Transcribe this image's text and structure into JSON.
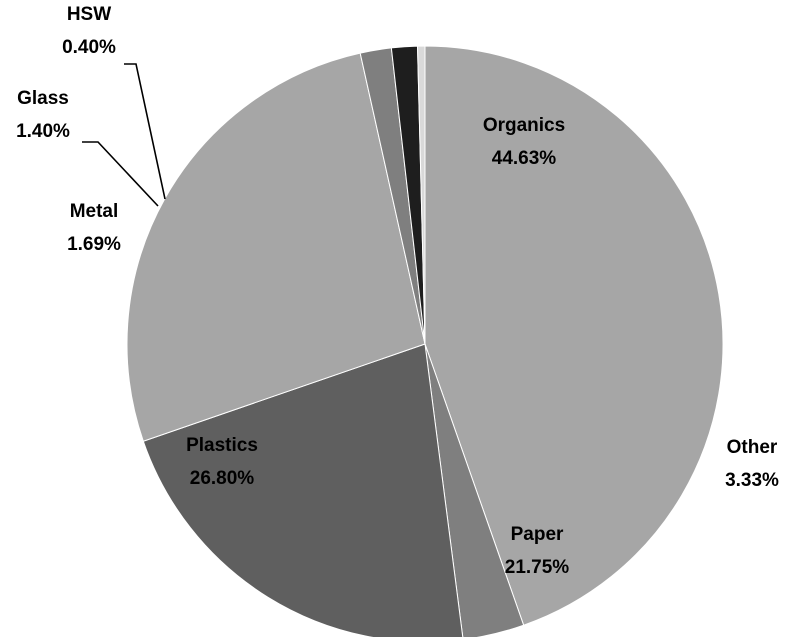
{
  "chart_data": {
    "type": "pie",
    "slices": [
      {
        "name": "Organics",
        "value": 44.63,
        "label": "44.63%",
        "color": "#a6a6a6"
      },
      {
        "name": "Other",
        "value": 3.33,
        "label": "3.33%",
        "color": "#7f7f7f"
      },
      {
        "name": "Paper",
        "value": 21.75,
        "label": "21.75%",
        "color": "#5f5f5f"
      },
      {
        "name": "Plastics",
        "value": 26.8,
        "label": "26.80%",
        "color": "#a6a6a6"
      },
      {
        "name": "Metal",
        "value": 1.69,
        "label": "1.69%",
        "color": "#7f7f7f"
      },
      {
        "name": "Glass",
        "value": 1.4,
        "label": "1.40%",
        "color": "#1e1e1e"
      },
      {
        "name": "HSW",
        "value": 0.4,
        "label": "0.40%",
        "color": "#d9d9d9"
      }
    ],
    "start_angle_deg": 90,
    "direction": "clockwise",
    "legend": "none",
    "labels": "category name and percentage on each slice"
  }
}
